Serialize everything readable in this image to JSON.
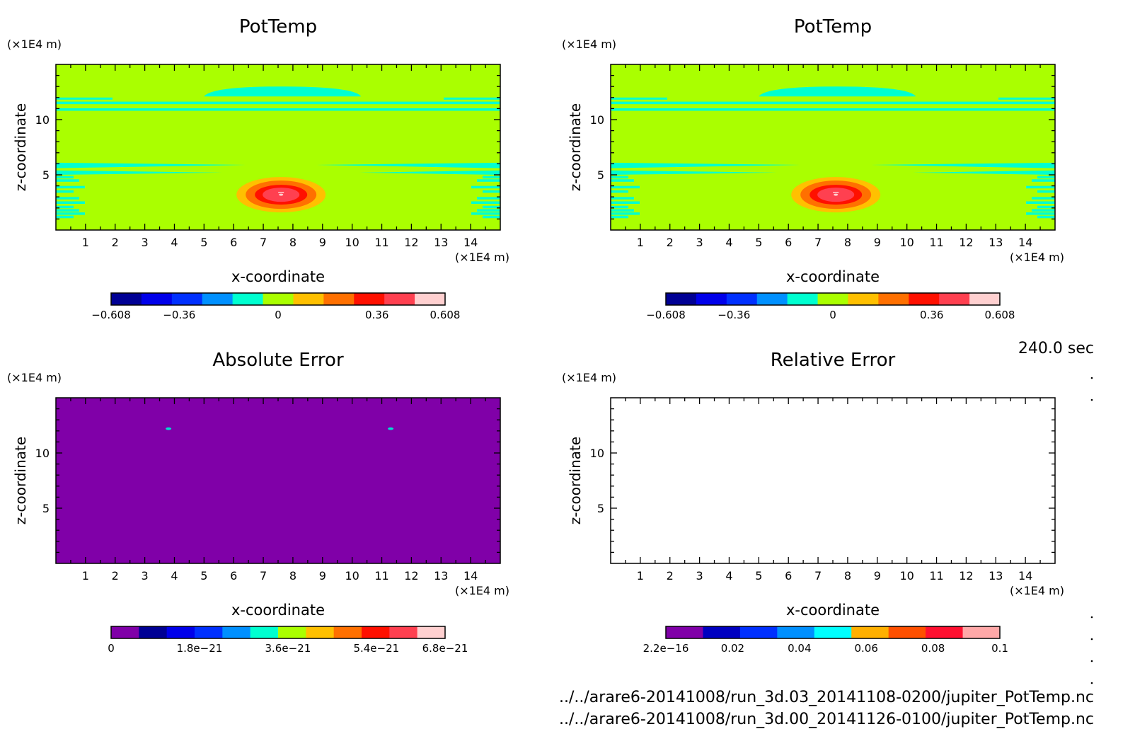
{
  "time_label": "240.0 sec",
  "files": [
    "../../arare6-20141008/run_3d.03_20141108-0200/jupiter_PotTemp.nc",
    "../../arare6-20141008/run_3d.00_20141126-0100/jupiter_PotTemp.nc"
  ],
  "chart_data": [
    {
      "type": "heatmap",
      "title": "PotTemp",
      "xlabel": "x-coordinate",
      "ylabel": "z-coordinate",
      "x_unit": "(×1E4 m)",
      "y_unit": "(×1E4 m)",
      "xlim": [
        0,
        15
      ],
      "ylim": [
        0,
        15
      ],
      "xticks": [
        "1",
        "2",
        "3",
        "4",
        "5",
        "6",
        "7",
        "8",
        "9",
        "10",
        "11",
        "12",
        "13",
        "14"
      ],
      "yticks": [
        "5",
        "10"
      ],
      "background_color": "#aaff00",
      "features": [
        {
          "kind": "warm-bubble",
          "center_x": 7.6,
          "center_z": 3.2,
          "peak": 0.608
        },
        {
          "kind": "bands",
          "color": "#00ffd0",
          "z_levels": [
            11.4,
            11.5,
            10.9,
            10.8,
            6.0,
            5.6,
            5.2,
            4.9,
            4.6,
            4.4,
            3.6,
            3.4,
            2.8,
            2.4,
            2.1,
            1.7,
            1.4,
            1.1
          ]
        },
        {
          "kind": "dome",
          "color": "#00ffd0",
          "x_from": 5.0,
          "x_to": 10.3,
          "z_from": 12.1,
          "z_to": 13.0
        }
      ],
      "colorbar": {
        "colors": [
          "#000094",
          "#0000ea",
          "#0030ff",
          "#0090ff",
          "#00ffd0",
          "#aaff00",
          "#ffc000",
          "#ff7000",
          "#ff1000",
          "#ff4050",
          "#ffd0d0"
        ],
        "tick_labels": [
          "−0.608",
          "−0.36",
          "0",
          "0.36",
          "0.608"
        ],
        "tick_values": [
          -0.608,
          -0.36,
          0,
          0.36,
          0.608
        ],
        "range": [
          -0.608,
          0.608
        ]
      }
    },
    {
      "type": "heatmap",
      "title": "PotTemp",
      "xlabel": "x-coordinate",
      "ylabel": "z-coordinate",
      "x_unit": "(×1E4 m)",
      "y_unit": "(×1E4 m)",
      "xlim": [
        0,
        15
      ],
      "ylim": [
        0,
        15
      ],
      "xticks": [
        "1",
        "2",
        "3",
        "4",
        "5",
        "6",
        "7",
        "8",
        "9",
        "10",
        "11",
        "12",
        "13",
        "14"
      ],
      "yticks": [
        "5",
        "10"
      ],
      "background_color": "#aaff00",
      "features": [
        {
          "kind": "warm-bubble",
          "center_x": 7.6,
          "center_z": 3.2,
          "peak": 0.608
        },
        {
          "kind": "bands",
          "color": "#00ffd0",
          "z_levels": [
            11.4,
            11.5,
            10.9,
            10.8,
            6.0,
            5.6,
            5.2,
            4.9,
            4.6,
            4.4,
            3.6,
            3.4,
            2.8,
            2.4,
            2.1,
            1.7,
            1.4,
            1.1
          ]
        },
        {
          "kind": "dome",
          "color": "#00ffd0",
          "x_from": 5.0,
          "x_to": 10.3,
          "z_from": 12.1,
          "z_to": 13.0
        }
      ],
      "colorbar": {
        "colors": [
          "#000094",
          "#0000ea",
          "#0030ff",
          "#0090ff",
          "#00ffd0",
          "#aaff00",
          "#ffc000",
          "#ff7000",
          "#ff1000",
          "#ff4050",
          "#ffd0d0"
        ],
        "tick_labels": [
          "−0.608",
          "−0.36",
          "0",
          "0.36",
          "0.608"
        ],
        "tick_values": [
          -0.608,
          -0.36,
          0,
          0.36,
          0.608
        ],
        "range": [
          -0.608,
          0.608
        ]
      }
    },
    {
      "type": "heatmap",
      "title": "Absolute Error",
      "xlabel": "x-coordinate",
      "ylabel": "z-coordinate",
      "x_unit": "(×1E4 m)",
      "y_unit": "(×1E4 m)",
      "xlim": [
        0,
        15
      ],
      "ylim": [
        0,
        15
      ],
      "xticks": [
        "1",
        "2",
        "3",
        "4",
        "5",
        "6",
        "7",
        "8",
        "9",
        "10",
        "11",
        "12",
        "13",
        "14"
      ],
      "yticks": [
        "5",
        "10"
      ],
      "background_color": "#8000a8",
      "features": [
        {
          "kind": "spots",
          "color": "#00e0d0",
          "points": [
            [
              3.8,
              12.2
            ],
            [
              11.3,
              12.2
            ]
          ]
        }
      ],
      "colorbar": {
        "colors": [
          "#8000a8",
          "#000094",
          "#0000ea",
          "#0030ff",
          "#0090ff",
          "#00ffd0",
          "#aaff00",
          "#ffc000",
          "#ff7000",
          "#ff1000",
          "#ff4050",
          "#ffd0d0"
        ],
        "tick_labels": [
          "0",
          "1.8e−21",
          "3.6e−21",
          "5.4e−21",
          "6.8e−21"
        ],
        "tick_values": [
          0,
          1.8e-21,
          3.6e-21,
          5.4e-21,
          6.8e-21
        ],
        "range": [
          0,
          6.8e-21
        ]
      }
    },
    {
      "type": "heatmap",
      "title": "Relative Error",
      "xlabel": "x-coordinate",
      "ylabel": "z-coordinate",
      "x_unit": "(×1E4 m)",
      "y_unit": "(×1E4 m)",
      "xlim": [
        0,
        15
      ],
      "ylim": [
        0,
        15
      ],
      "xticks": [
        "1",
        "2",
        "3",
        "4",
        "5",
        "6",
        "7",
        "8",
        "9",
        "10",
        "11",
        "12",
        "13",
        "14"
      ],
      "yticks": [
        "5",
        "10"
      ],
      "background_color": "#ffffff",
      "features": [],
      "colorbar": {
        "colors": [
          "#8000a8",
          "#0000c0",
          "#0030ff",
          "#0090ff",
          "#00ffff",
          "#ffb000",
          "#ff5000",
          "#ff1030",
          "#ffa8a8"
        ],
        "tick_labels": [
          "2.2e−16",
          "0.02",
          "0.04",
          "0.06",
          "0.08",
          "0.1"
        ],
        "tick_values": [
          2.2e-16,
          0.02,
          0.04,
          0.06,
          0.08,
          0.1
        ],
        "range": [
          0,
          0.1
        ]
      }
    }
  ]
}
